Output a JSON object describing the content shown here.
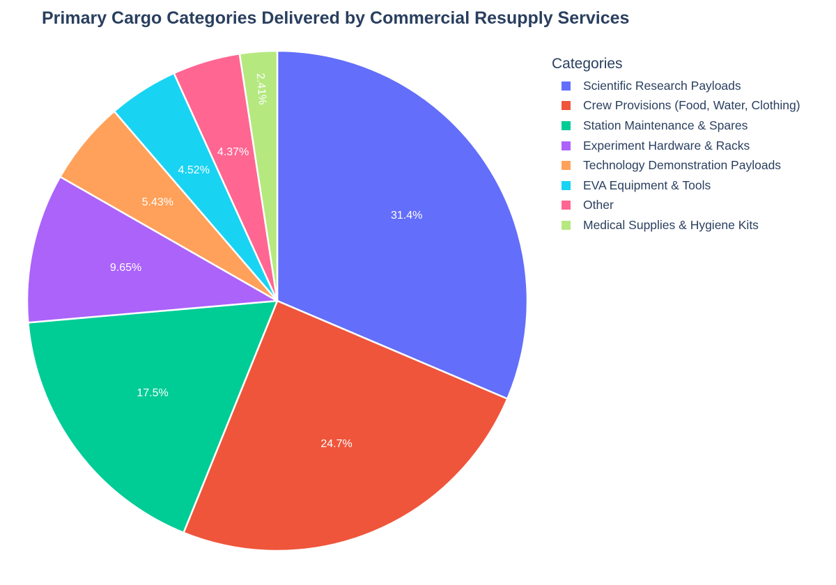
{
  "chart_data": {
    "type": "pie",
    "title": "Primary Cargo Categories Delivered by Commercial Resupply Services",
    "legend_title": "Categories",
    "legend_position": "right",
    "direction": "clockwise",
    "slices": [
      {
        "label": "Scientific Research Payloads",
        "value": 31.4,
        "text": "31.4%",
        "color": "#636efa"
      },
      {
        "label": "Crew Provisions (Food, Water, Clothing)",
        "value": 24.7,
        "text": "24.7%",
        "color": "#ef553b"
      },
      {
        "label": "Station Maintenance & Spares",
        "value": 17.5,
        "text": "17.5%",
        "color": "#00cc96"
      },
      {
        "label": "Experiment Hardware & Racks",
        "value": 9.65,
        "text": "9.65%",
        "color": "#ab63fa"
      },
      {
        "label": "Technology Demonstration Payloads",
        "value": 5.43,
        "text": "5.43%",
        "color": "#ffa15a"
      },
      {
        "label": "EVA Equipment & Tools",
        "value": 4.52,
        "text": "4.52%",
        "color": "#19d3f3"
      },
      {
        "label": "Other",
        "value": 4.37,
        "text": "4.37%",
        "color": "#ff6692"
      },
      {
        "label": "Medical Supplies & Hygiene Kits",
        "value": 2.41,
        "text": "2.41%",
        "color": "#b6e880"
      }
    ]
  }
}
